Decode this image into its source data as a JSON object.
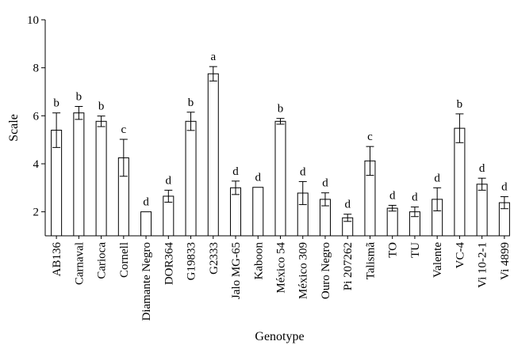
{
  "chart_data": {
    "type": "bar",
    "title": "",
    "xlabel": "Genotype",
    "ylabel": "Scale",
    "ylim": [
      1,
      10
    ],
    "yticks": [
      2,
      4,
      6,
      8,
      10
    ],
    "grid": false,
    "categories": [
      "AB136",
      "Carnaval",
      "Carioca",
      "Cornell",
      "Diamante Negro",
      "DOR364",
      "G19833",
      "G2333",
      "Jalo MG-65",
      "Kaboon",
      "México 54",
      "México 309",
      "Ouro Negro",
      "Pi 207262",
      "Talismã",
      "TO",
      "TU",
      "Valente",
      "VC-4",
      "Vi 10-2-1",
      "Vi 4899"
    ],
    "values": [
      5.4,
      6.12,
      5.77,
      4.25,
      2.0,
      2.65,
      5.77,
      7.75,
      3.0,
      3.02,
      5.77,
      2.78,
      2.52,
      1.75,
      4.12,
      2.15,
      2.0,
      2.52,
      5.48,
      3.15,
      2.38
    ],
    "errors": [
      0.72,
      0.27,
      0.22,
      0.77,
      0.0,
      0.25,
      0.38,
      0.3,
      0.28,
      0.0,
      0.12,
      0.48,
      0.27,
      0.15,
      0.6,
      0.12,
      0.2,
      0.48,
      0.6,
      0.25,
      0.25
    ],
    "significance": [
      "b",
      "b",
      "b",
      "c",
      "d",
      "d",
      "b",
      "a",
      "d",
      "d",
      "b",
      "d",
      "d",
      "d",
      "c",
      "d",
      "d",
      "d",
      "b",
      "d",
      "d"
    ]
  }
}
